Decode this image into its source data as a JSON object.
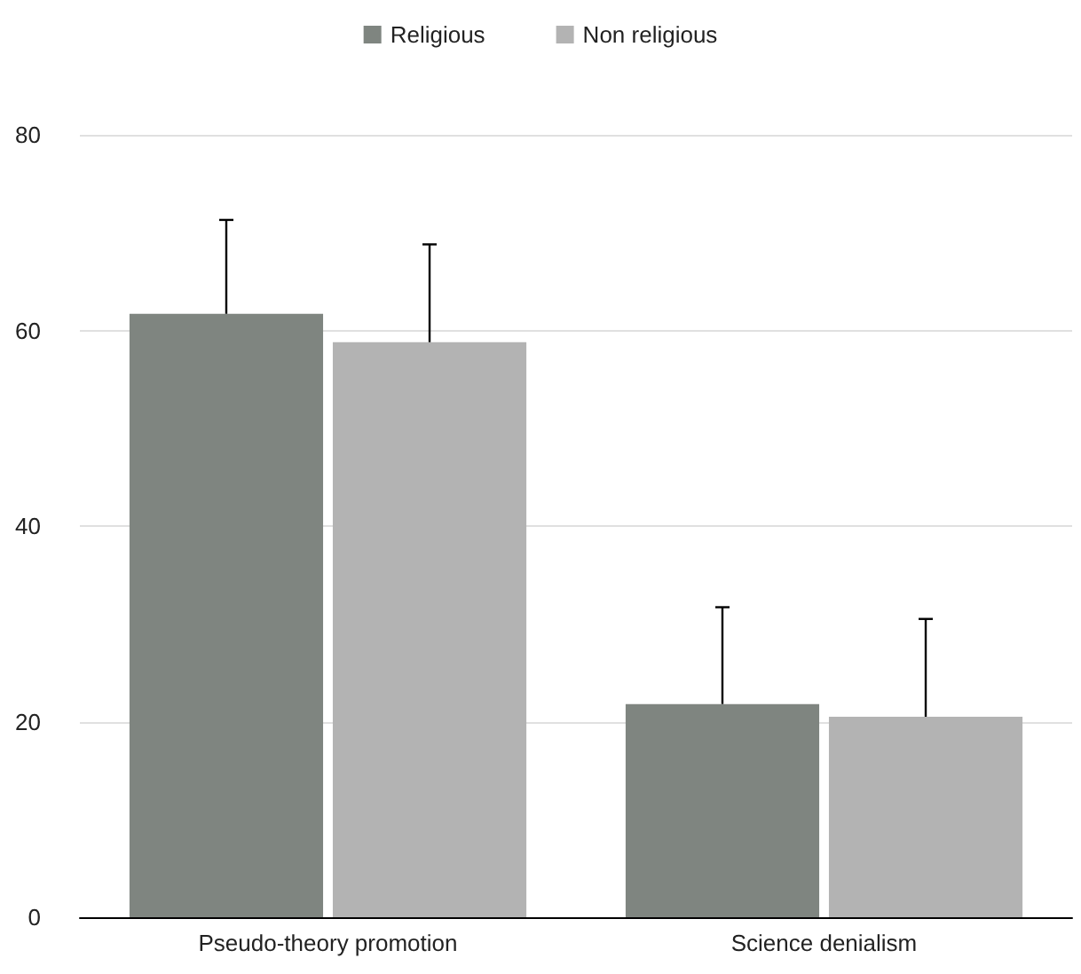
{
  "chart_data": {
    "type": "bar",
    "categories": [
      "Pseudo-theory promotion",
      "Science denialism"
    ],
    "series": [
      {
        "name": "Religious",
        "color": "#7f8580",
        "values": [
          61.7,
          21.8
        ],
        "errors": [
          [
            61.7,
            71.3
          ],
          [
            21.8,
            31.7
          ]
        ]
      },
      {
        "name": "Non religious",
        "color": "#b3b3b3",
        "values": [
          58.8,
          20.5
        ],
        "errors": [
          [
            58.8,
            68.8
          ],
          [
            20.5,
            30.5
          ]
        ]
      }
    ],
    "ylim": [
      0,
      80
    ],
    "yticks": [
      0,
      20,
      40,
      60,
      80
    ],
    "grid": "y",
    "legend": "top"
  }
}
